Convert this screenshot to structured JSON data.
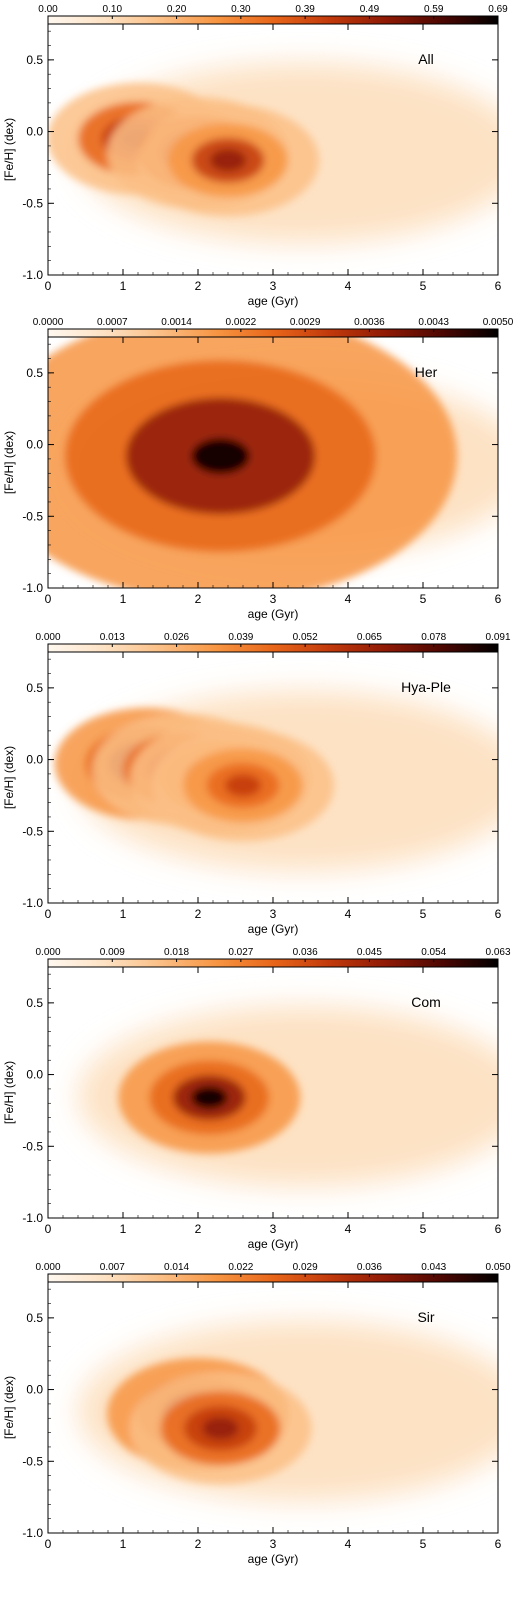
{
  "chart_data": [
    {
      "type": "heatmap",
      "label": "All",
      "xlabel": "age (Gyr)",
      "ylabel": "[Fe/H] (dex)",
      "xlim": [
        0,
        6
      ],
      "ylim": [
        -1.0,
        0.75
      ],
      "xticks": [
        "0",
        "1",
        "2",
        "3",
        "4",
        "5",
        "6"
      ],
      "yticks": [
        "-1.0",
        "-0.5",
        "0.0",
        "0.5"
      ],
      "colorbar_ticks": [
        "0.00",
        "0.10",
        "0.20",
        "0.30",
        "0.39",
        "0.49",
        "0.59",
        "0.69"
      ],
      "colorbar_range": [
        0,
        0.69
      ],
      "density_peaks": [
        {
          "age": 1.2,
          "feh": -0.05,
          "level": 0.85
        },
        {
          "age": 2.0,
          "feh": -0.15,
          "level": 0.8
        },
        {
          "age": 2.4,
          "feh": -0.2,
          "level": 0.75
        }
      ]
    },
    {
      "type": "heatmap",
      "label": "Her",
      "xlabel": "age (Gyr)",
      "ylabel": "[Fe/H] (dex)",
      "xlim": [
        0,
        6
      ],
      "ylim": [
        -1.0,
        0.75
      ],
      "xticks": [
        "0",
        "1",
        "2",
        "3",
        "4",
        "5",
        "6"
      ],
      "yticks": [
        "-1.0",
        "-0.5",
        "0.0",
        "0.5"
      ],
      "colorbar_ticks": [
        "0.0000",
        "0.0007",
        "0.0014",
        "0.0022",
        "0.0029",
        "0.0036",
        "0.0043",
        "0.0050"
      ],
      "colorbar_range": [
        0,
        0.005
      ],
      "density_peaks": [
        {
          "age": 2.3,
          "feh": -0.08,
          "level": 1.0
        }
      ]
    },
    {
      "type": "heatmap",
      "label": "Hya-Ple",
      "xlabel": "age (Gyr)",
      "ylabel": "[Fe/H] (dex)",
      "xlim": [
        0,
        6
      ],
      "ylim": [
        -1.0,
        0.75
      ],
      "xticks": [
        "0",
        "1",
        "2",
        "3",
        "4",
        "5",
        "6"
      ],
      "yticks": [
        "-1.0",
        "-0.5",
        "0.0",
        "0.5"
      ],
      "colorbar_ticks": [
        "0.000",
        "0.013",
        "0.026",
        "0.039",
        "0.052",
        "0.065",
        "0.078",
        "0.091"
      ],
      "colorbar_range": [
        0,
        0.091
      ],
      "density_peaks": [
        {
          "age": 1.3,
          "feh": -0.03,
          "level": 0.95
        },
        {
          "age": 1.8,
          "feh": -0.07,
          "level": 0.8
        },
        {
          "age": 2.3,
          "feh": -0.13,
          "level": 0.75
        },
        {
          "age": 2.6,
          "feh": -0.18,
          "level": 0.7
        }
      ]
    },
    {
      "type": "heatmap",
      "label": "Com",
      "xlabel": "age (Gyr)",
      "ylabel": "[Fe/H] (dex)",
      "xlim": [
        0,
        6
      ],
      "ylim": [
        -1.0,
        0.75
      ],
      "xticks": [
        "0",
        "1",
        "2",
        "3",
        "4",
        "5",
        "6"
      ],
      "yticks": [
        "-1.0",
        "-0.5",
        "0.0",
        "0.5"
      ],
      "colorbar_ticks": [
        "0.000",
        "0.009",
        "0.018",
        "0.027",
        "0.036",
        "0.045",
        "0.054",
        "0.063"
      ],
      "colorbar_range": [
        0,
        0.063
      ],
      "density_peaks": [
        {
          "age": 2.15,
          "feh": -0.16,
          "level": 1.0
        }
      ]
    },
    {
      "type": "heatmap",
      "label": "Sir",
      "xlabel": "age (Gyr)",
      "ylabel": "[Fe/H] (dex)",
      "xlim": [
        0,
        6
      ],
      "ylim": [
        -1.0,
        0.75
      ],
      "xticks": [
        "0",
        "1",
        "2",
        "3",
        "4",
        "5",
        "6"
      ],
      "yticks": [
        "-1.0",
        "-0.5",
        "0.0",
        "0.5"
      ],
      "colorbar_ticks": [
        "0.000",
        "0.007",
        "0.014",
        "0.022",
        "0.029",
        "0.036",
        "0.043",
        "0.050"
      ],
      "colorbar_range": [
        0,
        0.05
      ],
      "density_peaks": [
        {
          "age": 2.0,
          "feh": -0.17,
          "level": 1.0
        },
        {
          "age": 2.3,
          "feh": -0.27,
          "level": 0.85
        }
      ]
    }
  ],
  "colorscale": [
    "#fff8f0",
    "#fde2c4",
    "#fbbf86",
    "#f79542",
    "#e8661a",
    "#c23a0c",
    "#8f1a06",
    "#4d0702",
    "#000000"
  ]
}
